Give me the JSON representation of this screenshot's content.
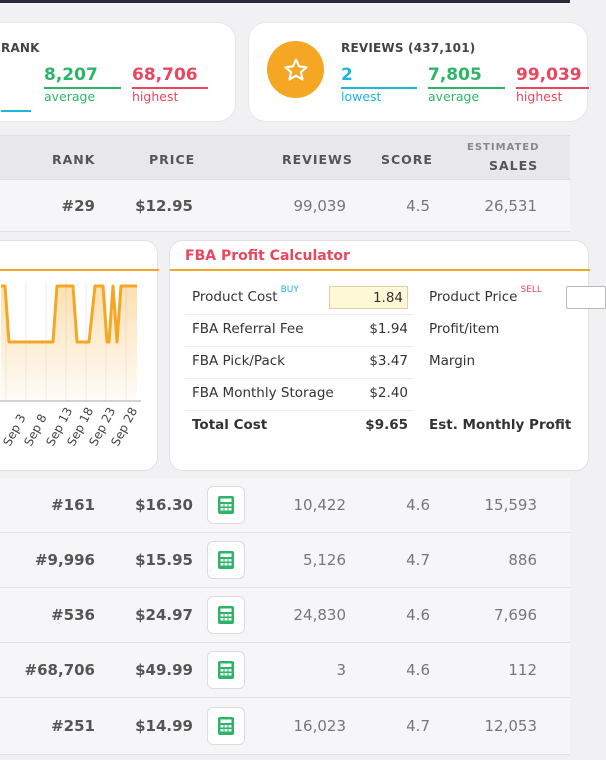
{
  "rank_card": {
    "title": "RANK",
    "average_value": "8,207",
    "average_label": "average",
    "highest_value": "68,706",
    "highest_label": "highest"
  },
  "reviews_card": {
    "title": "REVIEWS (437,101)",
    "lowest_value": "2",
    "lowest_label": "lowest",
    "average_value": "7,805",
    "average_label": "average",
    "highest_value": "99,039",
    "highest_label": "highest"
  },
  "colors": {
    "lowest": "#1fb7d9",
    "average": "#2cb567",
    "highest": "#e8475f",
    "accent": "#f5a623"
  },
  "table": {
    "headers": {
      "rank": "RANK",
      "price": "PRICE",
      "reviews": "REVIEWS",
      "score": "SCORE",
      "sales_top": "ESTIMATED",
      "sales_bottom": "SALES"
    },
    "first_row": {
      "rank": "#29",
      "price": "$12.95",
      "reviews": "99,039",
      "score": "4.5",
      "sales": "26,531"
    },
    "rows": [
      {
        "rank": "#161",
        "price": "$16.30",
        "reviews": "10,422",
        "score": "4.6",
        "sales": "15,593"
      },
      {
        "rank": "#9,996",
        "price": "$15.95",
        "reviews": "5,126",
        "score": "4.7",
        "sales": "886"
      },
      {
        "rank": "#536",
        "price": "$24.97",
        "reviews": "24,830",
        "score": "4.6",
        "sales": "7,696"
      },
      {
        "rank": "#68,706",
        "price": "$49.99",
        "reviews": "3",
        "score": "4.6",
        "sales": "112"
      },
      {
        "rank": "#251",
        "price": "$14.99",
        "reviews": "16,023",
        "score": "4.7",
        "sales": "12,053"
      }
    ]
  },
  "chart": {
    "x_ticks": [
      "Sep 3",
      "Sep 8",
      "Sep 13",
      "Sep 18",
      "Sep 23",
      "Sep 28"
    ]
  },
  "fba": {
    "title": "FBA Profit Calculator",
    "product_cost_label": "Product Cost",
    "buy_tag": "BUY",
    "product_cost_value": "1.84",
    "product_price_label": "Product Price",
    "sell_tag": "SELL",
    "referral_label": "FBA Referral Fee",
    "referral_value": "$1.94",
    "pickpack_label": "FBA Pick/Pack",
    "pickpack_value": "$3.47",
    "storage_label": "FBA Monthly Storage",
    "storage_value": "$2.40",
    "total_label": "Total Cost",
    "total_value": "$9.65",
    "profit_item_label": "Profit/item",
    "margin_label": "Margin",
    "est_profit_label": "Est. Monthly Profit"
  }
}
